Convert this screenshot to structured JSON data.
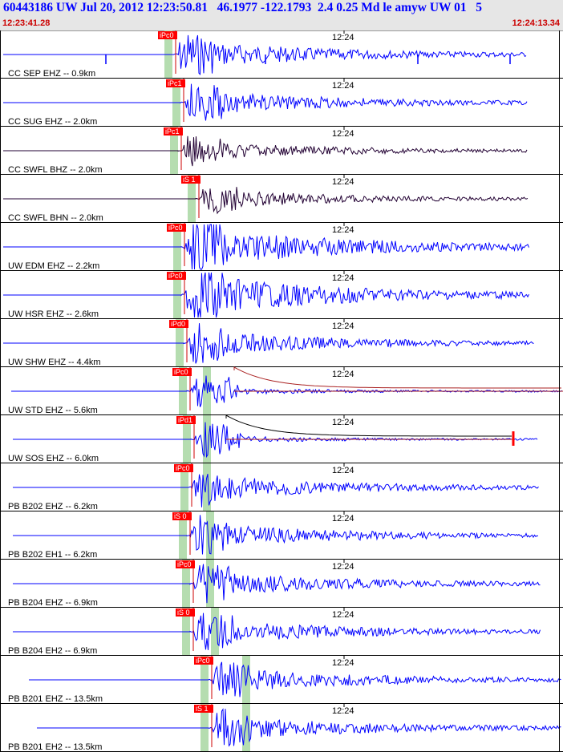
{
  "header": {
    "title": "60443186 UW Jul 20, 2012 12:23:50.81   46.1977 -122.1793  2.4 0.25 Md le amyw UW 01   5",
    "start_time": "12:23:41.28",
    "end_time": "12:24:13.34"
  },
  "tick_label": "12:24",
  "colors": {
    "header_bg": "#e6e6e6",
    "title": "#0000ff",
    "time": "#cc0000",
    "trace_blue": "#0000ff",
    "trace_dark": "#220033",
    "pick_box": "#ff0000",
    "pick_line": "#cc0000",
    "pick_band": "#b5ddb0",
    "coda": "#aa2222",
    "separator": "#000000"
  },
  "traces": [
    {
      "label": "CC SEP EHZ -- 0.9km",
      "pick": "iPc0",
      "color": "blue",
      "amp": "spiky"
    },
    {
      "label": "CC SUG EHZ -- 2.0km",
      "pick": "iPc1",
      "color": "blue",
      "amp": "mid"
    },
    {
      "label": "CC SWFL BHZ -- 2.0km",
      "pick": "iPc1",
      "color": "dark",
      "amp": "small"
    },
    {
      "label": "CC SWFL BHN -- 2.0km",
      "pick": "iS 1",
      "color": "dark",
      "amp": "small"
    },
    {
      "label": "UW EDM EHZ -- 2.2km",
      "pick": "iPc0",
      "color": "blue",
      "amp": "big"
    },
    {
      "label": "UW HSR EHZ -- 2.6km",
      "pick": "iPc0",
      "color": "blue",
      "amp": "big"
    },
    {
      "label": "UW SHW EHZ -- 4.4km",
      "pick": "iPd0",
      "color": "blue",
      "amp": "mid"
    },
    {
      "label": "UW STD EHZ -- 5.6km",
      "pick": "iPc0",
      "color": "blue",
      "amp": "coda"
    },
    {
      "label": "UW SOS EHZ -- 6.0km",
      "pick": "iPd1",
      "color": "blue",
      "amp": "coda"
    },
    {
      "label": "PB B202 EHZ -- 6.2km",
      "pick": "iPc0",
      "color": "blue",
      "amp": "mid"
    },
    {
      "label": "PB B202 EH1 -- 6.2km",
      "pick": "iS 0",
      "color": "blue",
      "amp": "mid"
    },
    {
      "label": "PB B204 EHZ -- 6.9km",
      "pick": "iPc0",
      "color": "blue",
      "amp": "mid"
    },
    {
      "label": "PB B204 EH2 -- 6.9km",
      "pick": "iS 0",
      "color": "blue",
      "amp": "mid"
    },
    {
      "label": "PB B201 EHZ -- 13.5km",
      "pick": "iPc0",
      "color": "blue",
      "amp": "mid"
    },
    {
      "label": "PB B201 EH2 -- 13.5km",
      "pick": "iS 1",
      "color": "blue",
      "amp": "mid"
    }
  ]
}
